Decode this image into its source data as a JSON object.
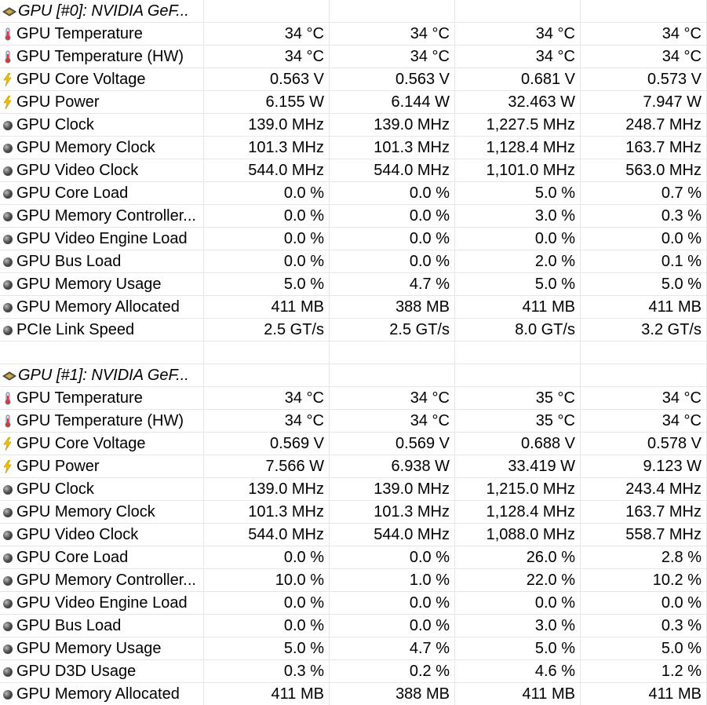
{
  "sections": [
    {
      "title": "GPU [#0]: NVIDIA GeF...",
      "rows": [
        {
          "label": "GPU Temperature",
          "values": [
            "34 °C",
            "34 °C",
            "34 °C",
            "34 °C"
          ]
        },
        {
          "label": "GPU Temperature (HW)",
          "values": [
            "34 °C",
            "34 °C",
            "34 °C",
            "34 °C"
          ]
        },
        {
          "label": "GPU Core Voltage",
          "values": [
            "0.563 V",
            "0.563 V",
            "0.681 V",
            "0.573 V"
          ]
        },
        {
          "label": "GPU Power",
          "values": [
            "6.155 W",
            "6.144 W",
            "32.463 W",
            "7.947 W"
          ]
        },
        {
          "label": "GPU Clock",
          "values": [
            "139.0 MHz",
            "139.0 MHz",
            "1,227.5 MHz",
            "248.7 MHz"
          ]
        },
        {
          "label": "GPU Memory Clock",
          "values": [
            "101.3 MHz",
            "101.3 MHz",
            "1,128.4 MHz",
            "163.7 MHz"
          ]
        },
        {
          "label": "GPU Video Clock",
          "values": [
            "544.0 MHz",
            "544.0 MHz",
            "1,101.0 MHz",
            "563.0 MHz"
          ]
        },
        {
          "label": "GPU Core Load",
          "values": [
            "0.0 %",
            "0.0 %",
            "5.0 %",
            "0.7 %"
          ]
        },
        {
          "label": "GPU Memory Controller...",
          "values": [
            "0.0 %",
            "0.0 %",
            "3.0 %",
            "0.3 %"
          ]
        },
        {
          "label": "GPU Video Engine Load",
          "values": [
            "0.0 %",
            "0.0 %",
            "0.0 %",
            "0.0 %"
          ]
        },
        {
          "label": "GPU Bus Load",
          "values": [
            "0.0 %",
            "0.0 %",
            "2.0 %",
            "0.1 %"
          ]
        },
        {
          "label": "GPU Memory Usage",
          "values": [
            "5.0 %",
            "4.7 %",
            "5.0 %",
            "5.0 %"
          ]
        },
        {
          "label": "GPU Memory Allocated",
          "values": [
            "411 MB",
            "388 MB",
            "411 MB",
            "411 MB"
          ]
        },
        {
          "label": "PCIe Link Speed",
          "values": [
            "2.5 GT/s",
            "2.5 GT/s",
            "8.0 GT/s",
            "3.2 GT/s"
          ]
        }
      ]
    },
    {
      "title": "GPU [#1]: NVIDIA GeF...",
      "rows": [
        {
          "label": "GPU Temperature",
          "values": [
            "34 °C",
            "34 °C",
            "35 °C",
            "34 °C"
          ]
        },
        {
          "label": "GPU Temperature (HW)",
          "values": [
            "34 °C",
            "34 °C",
            "35 °C",
            "34 °C"
          ]
        },
        {
          "label": "GPU Core Voltage",
          "values": [
            "0.569 V",
            "0.569 V",
            "0.688 V",
            "0.578 V"
          ]
        },
        {
          "label": "GPU Power",
          "values": [
            "7.566 W",
            "6.938 W",
            "33.419 W",
            "9.123 W"
          ]
        },
        {
          "label": "GPU Clock",
          "values": [
            "139.0 MHz",
            "139.0 MHz",
            "1,215.0 MHz",
            "243.4 MHz"
          ]
        },
        {
          "label": "GPU Memory Clock",
          "values": [
            "101.3 MHz",
            "101.3 MHz",
            "1,128.4 MHz",
            "163.7 MHz"
          ]
        },
        {
          "label": "GPU Video Clock",
          "values": [
            "544.0 MHz",
            "544.0 MHz",
            "1,088.0 MHz",
            "558.7 MHz"
          ]
        },
        {
          "label": "GPU Core Load",
          "values": [
            "0.0 %",
            "0.0 %",
            "26.0 %",
            "2.8 %"
          ]
        },
        {
          "label": "GPU Memory Controller...",
          "values": [
            "10.0 %",
            "1.0 %",
            "22.0 %",
            "10.2 %"
          ]
        },
        {
          "label": "GPU Video Engine Load",
          "values": [
            "0.0 %",
            "0.0 %",
            "0.0 %",
            "0.0 %"
          ]
        },
        {
          "label": "GPU Bus Load",
          "values": [
            "0.0 %",
            "0.0 %",
            "3.0 %",
            "0.3 %"
          ]
        },
        {
          "label": "GPU Memory Usage",
          "values": [
            "5.0 %",
            "4.7 %",
            "5.0 %",
            "5.0 %"
          ]
        },
        {
          "label": "GPU D3D Usage",
          "values": [
            "0.3 %",
            "0.2 %",
            "4.6 %",
            "1.2 %"
          ]
        },
        {
          "label": "GPU Memory Allocated",
          "values": [
            "411 MB",
            "388 MB",
            "411 MB",
            "411 MB"
          ]
        }
      ]
    }
  ]
}
